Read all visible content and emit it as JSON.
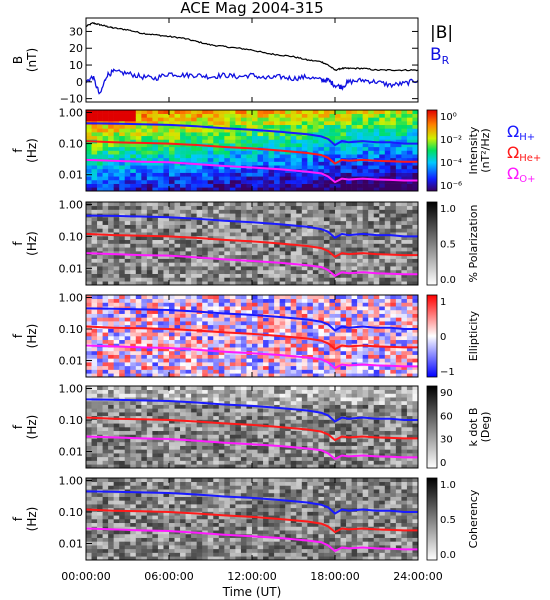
{
  "title": "ACE Mag 2004-315",
  "colors": {
    "total_field": "#000000",
    "radial_field": "#1010e0",
    "h_gyro": "#1a1aff",
    "he_gyro": "#ff1a1a",
    "o_gyro": "#ff1aff"
  },
  "x_axis": {
    "label": "Time (UT)",
    "ticks": [
      "00:00:00",
      "06:00:00",
      "12:00:00",
      "18:00:00",
      "24:00:00"
    ],
    "range_hours": [
      0,
      24
    ]
  },
  "legend_field": {
    "total": "|B|",
    "radial": "B",
    "radial_sub": "R"
  },
  "legend_gyro": [
    {
      "sym": "Ω",
      "sub": "H+"
    },
    {
      "sym": "Ω",
      "sub": "He+"
    },
    {
      "sym": "Ω",
      "sub": "O+"
    }
  ],
  "chart_data": [
    {
      "type": "line",
      "panel": "field",
      "ylabel_top": "B",
      "ylabel_bottom": "(nT)",
      "ylim": [
        -12,
        38
      ],
      "yticks": [
        -10,
        0,
        10,
        20,
        30
      ],
      "ytick_labels": [
        "−10",
        "0",
        "10",
        "20",
        "30"
      ],
      "x": [
        0,
        0.5,
        1,
        1.5,
        2,
        3,
        4,
        5,
        6,
        7,
        8,
        9,
        10,
        11,
        12,
        13,
        14,
        15,
        16,
        17,
        17.5,
        18,
        18.5,
        19,
        20,
        21,
        22,
        23,
        24
      ],
      "series": [
        {
          "name": "|B|",
          "values": [
            33,
            35,
            34,
            33,
            32,
            31,
            29,
            28,
            27,
            26,
            24,
            22,
            21,
            20,
            19,
            17,
            16,
            15,
            13,
            12,
            10,
            7,
            8,
            8,
            8,
            7,
            7,
            7,
            7
          ]
        },
        {
          "name": "B R",
          "values": [
            0,
            3,
            -8,
            4,
            6,
            5,
            3,
            2,
            5,
            4,
            4,
            3,
            4,
            3,
            4,
            2,
            3,
            2,
            3,
            1,
            1,
            -2,
            -3,
            0,
            1,
            0,
            -2,
            -1,
            1
          ]
        }
      ]
    },
    {
      "type": "heatmap",
      "panel": "intensity",
      "ylabel_top": "f",
      "ylabel_bottom": "(Hz)",
      "yscale": "log",
      "ylim": [
        0.003,
        1.2
      ],
      "ytick_labels": [
        "1.00",
        "0.10",
        "0.01"
      ],
      "colorbar": {
        "label": "Intensity",
        "unit": "(nT²/Hz)",
        "ticks": [
          "10⁰",
          "10⁻²",
          "10⁻⁴",
          "10⁻⁶"
        ],
        "range": [
          -6,
          1
        ],
        "scale": "rainbow"
      }
    },
    {
      "type": "heatmap",
      "panel": "polarization",
      "ylabel_top": "f",
      "ylabel_bottom": "(Hz)",
      "yscale": "log",
      "ylim": [
        0.003,
        1.2
      ],
      "ytick_labels": [
        "1.00",
        "0.10",
        "0.01"
      ],
      "colorbar": {
        "label": "% Polarization",
        "unit": "",
        "ticks": [
          "1.0",
          "0.5",
          "0.0"
        ],
        "range": [
          0,
          1
        ],
        "scale": "gray"
      }
    },
    {
      "type": "heatmap",
      "panel": "ellipticity",
      "ylabel_top": "f",
      "ylabel_bottom": "(Hz)",
      "yscale": "log",
      "ylim": [
        0.003,
        1.2
      ],
      "ytick_labels": [
        "1.00",
        "0.10",
        "0.01"
      ],
      "colorbar": {
        "label": "Ellipticity",
        "unit": "",
        "ticks": [
          "1",
          "0",
          "−1"
        ],
        "range": [
          -1,
          1
        ],
        "scale": "bwr"
      }
    },
    {
      "type": "heatmap",
      "panel": "kdotb",
      "ylabel_top": "f",
      "ylabel_bottom": "(Hz)",
      "yscale": "log",
      "ylim": [
        0.003,
        1.2
      ],
      "ytick_labels": [
        "1.00",
        "0.10",
        "0.01"
      ],
      "colorbar": {
        "label": "k dot B",
        "unit": "(Deg)",
        "ticks": [
          "90",
          "60",
          "30",
          "0"
        ],
        "range": [
          0,
          90
        ],
        "scale": "gray"
      }
    },
    {
      "type": "heatmap",
      "panel": "coherency",
      "ylabel_top": "f",
      "ylabel_bottom": "(Hz)",
      "yscale": "log",
      "ylim": [
        0.003,
        1.2
      ],
      "ytick_labels": [
        "1.00",
        "0.10",
        "0.01"
      ],
      "colorbar": {
        "label": "Coherency",
        "unit": "",
        "ticks": [
          "1.0",
          "0.5",
          "0.0"
        ],
        "range": [
          0,
          1
        ],
        "scale": "gray"
      }
    }
  ],
  "gyro_lines": {
    "x": [
      0,
      2,
      4,
      6,
      8,
      10,
      12,
      14,
      16,
      17,
      17.5,
      18,
      18.5,
      19,
      20,
      21,
      22,
      23,
      24
    ],
    "h_plus": [
      0.45,
      0.44,
      0.42,
      0.4,
      0.36,
      0.31,
      0.28,
      0.24,
      0.2,
      0.17,
      0.14,
      0.09,
      0.12,
      0.11,
      0.12,
      0.11,
      0.11,
      0.1,
      0.1
    ],
    "he_plus": [
      0.12,
      0.11,
      0.105,
      0.1,
      0.09,
      0.078,
      0.07,
      0.06,
      0.05,
      0.043,
      0.035,
      0.023,
      0.03,
      0.028,
      0.03,
      0.028,
      0.027,
      0.026,
      0.026
    ],
    "o_plus": [
      0.03,
      0.028,
      0.026,
      0.025,
      0.022,
      0.019,
      0.017,
      0.015,
      0.0125,
      0.011,
      0.0088,
      0.0058,
      0.0075,
      0.007,
      0.0075,
      0.007,
      0.0068,
      0.0065,
      0.0065
    ]
  }
}
